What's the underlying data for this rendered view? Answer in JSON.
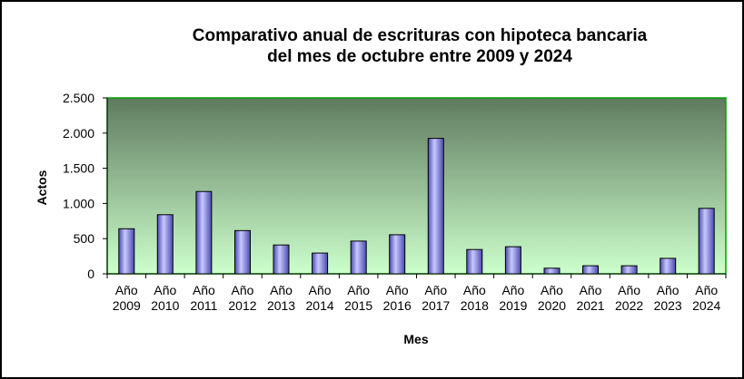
{
  "chart_data": {
    "type": "bar",
    "title": [
      "Comparativo anual de escrituras con hipoteca bancaria",
      "del mes de octubre entre 2009 y 2024"
    ],
    "xlabel": "Mes",
    "ylabel": "Actos",
    "ylim": [
      0,
      2500
    ],
    "yticks": [
      0,
      500,
      1000,
      1500,
      2000,
      2500
    ],
    "ytick_labels": [
      "0",
      "500",
      "1.000",
      "1.500",
      "2.000",
      "2.500"
    ],
    "categories": [
      [
        "Año",
        "2009"
      ],
      [
        "Año",
        "2010"
      ],
      [
        "Año",
        "2011"
      ],
      [
        "Año",
        "2012"
      ],
      [
        "Año",
        "2013"
      ],
      [
        "Año",
        "2014"
      ],
      [
        "Año",
        "2015"
      ],
      [
        "Año",
        "2016"
      ],
      [
        "Año",
        "2017"
      ],
      [
        "Año",
        "2018"
      ],
      [
        "Año",
        "2019"
      ],
      [
        "Año",
        "2020"
      ],
      [
        "Año",
        "2021"
      ],
      [
        "Año",
        "2022"
      ],
      [
        "Año",
        "2023"
      ],
      [
        "Año",
        "2024"
      ]
    ],
    "values": [
      640,
      840,
      1170,
      615,
      410,
      295,
      465,
      555,
      1925,
      345,
      385,
      80,
      115,
      115,
      220,
      930
    ],
    "grid": false,
    "legend": "none",
    "colors": {
      "bar_fill_light": "#c8c8ff",
      "bar_fill_dark": "#4a4ab0",
      "bar_stroke": "#000000",
      "plot_bg_top": "#5f7a5f",
      "plot_bg_bottom": "#ccffcc",
      "plot_border": "#00a000"
    }
  }
}
